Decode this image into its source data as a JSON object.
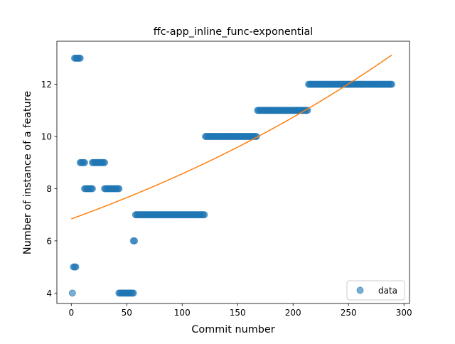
{
  "chart_data": {
    "type": "scatter",
    "title": "ffc-app_inline_func-exponential",
    "xlabel": "Commit number",
    "ylabel": "Number of instance of a feature",
    "xlim": [
      -13,
      305
    ],
    "ylim": [
      3.6,
      13.65
    ],
    "xticks": [
      0,
      50,
      100,
      150,
      200,
      250,
      300
    ],
    "yticks": [
      4,
      6,
      8,
      10,
      12
    ],
    "legend": {
      "position": "lower-right",
      "entries": [
        "data"
      ]
    },
    "colors": {
      "data": "#1f77b4",
      "fit": "#ff7f0e"
    },
    "grid": false,
    "series": [
      {
        "name": "data",
        "kind": "scatter",
        "segments": [
          {
            "x_start": 1,
            "x_end": 1,
            "y": 4
          },
          {
            "x_start": 2,
            "x_end": 4,
            "y": 5
          },
          {
            "x_start": 3,
            "x_end": 8,
            "y": 13
          },
          {
            "x_start": 8,
            "x_end": 12,
            "y": 9
          },
          {
            "x_start": 12,
            "x_end": 19,
            "y": 8
          },
          {
            "x_start": 19,
            "x_end": 30,
            "y": 9
          },
          {
            "x_start": 30,
            "x_end": 43,
            "y": 8
          },
          {
            "x_start": 43,
            "x_end": 56,
            "y": 4
          },
          {
            "x_start": 56,
            "x_end": 57,
            "y": 6
          },
          {
            "x_start": 58,
            "x_end": 120,
            "y": 7
          },
          {
            "x_start": 121,
            "x_end": 167,
            "y": 10
          },
          {
            "x_start": 168,
            "x_end": 213,
            "y": 11
          },
          {
            "x_start": 214,
            "x_end": 289,
            "y": 12
          }
        ]
      },
      {
        "kind": "line",
        "model": "exponential",
        "a": 6.84,
        "b": 0.002254,
        "x_range": [
          0,
          289
        ]
      }
    ]
  }
}
